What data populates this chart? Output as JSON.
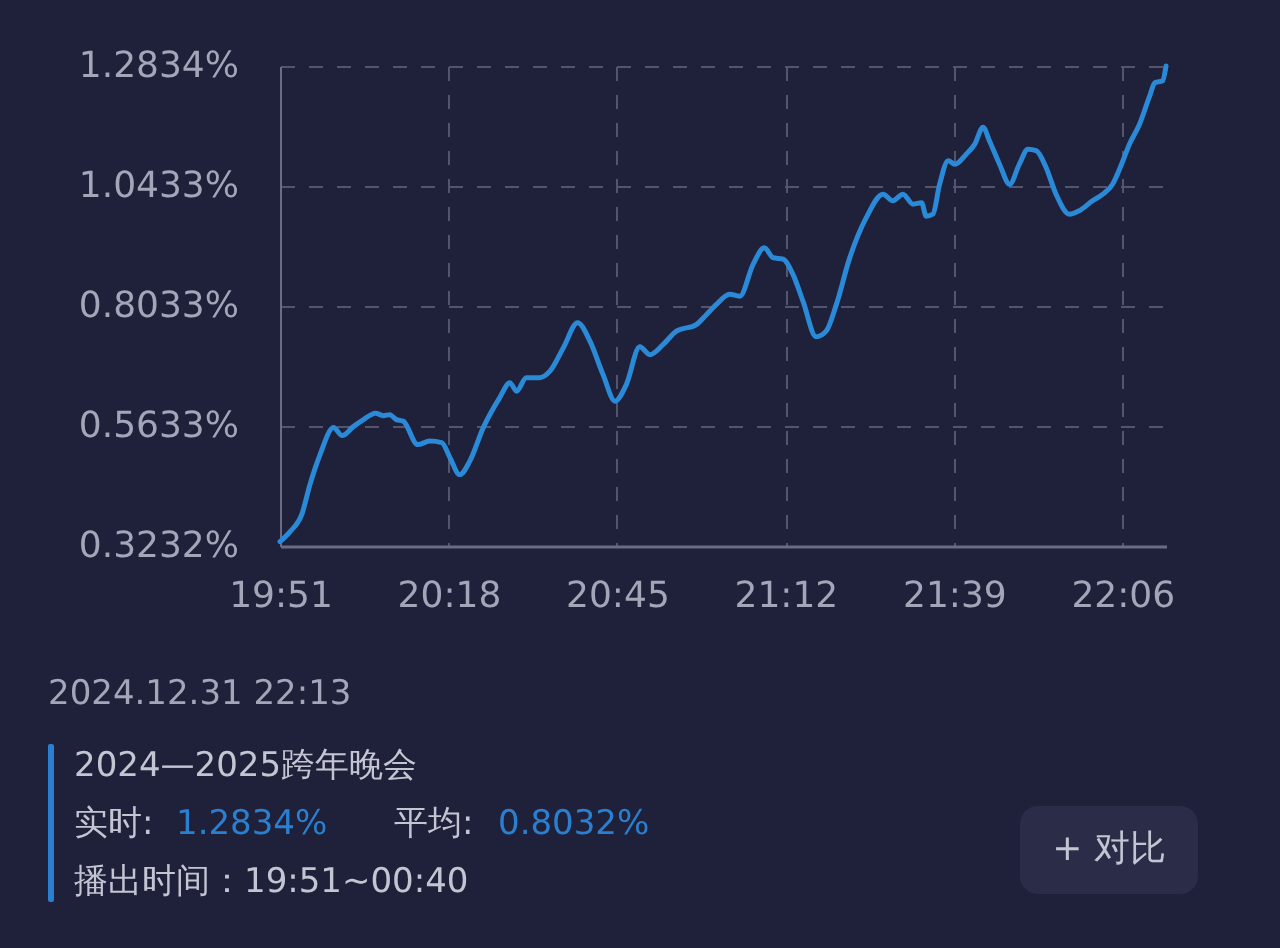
{
  "chart_data": {
    "type": "line",
    "x": [
      19.85,
      19.877,
      19.909,
      19.93,
      19.957,
      19.993,
      20.016,
      20.046,
      20.073,
      20.105,
      20.126,
      20.143,
      20.161,
      20.179,
      20.218,
      20.25,
      20.282,
      20.304,
      20.33,
      20.357,
      20.393,
      20.437,
      20.464,
      20.482,
      20.508,
      20.544,
      20.571,
      20.607,
      20.645,
      20.678,
      20.713,
      20.745,
      20.775,
      20.811,
      20.838,
      20.873,
      20.909,
      20.962,
      20.989,
      21.015,
      21.051,
      21.078,
      21.114,
      21.144,
      21.167,
      21.194,
      21.22,
      21.247,
      21.282,
      21.309,
      21.336,
      21.372,
      21.416,
      21.461,
      21.487,
      21.514,
      21.541,
      21.564,
      21.576,
      21.594,
      21.612,
      21.635,
      21.653,
      21.683,
      21.706,
      21.728,
      21.745,
      21.772,
      21.799,
      21.825,
      21.848,
      21.87,
      21.896,
      21.923,
      21.959,
      21.985,
      22.021,
      22.048,
      22.074,
      22.098,
      22.119,
      22.146,
      22.172,
      22.187,
      22.208,
      22.2167
    ],
    "series": [
      {
        "color": "#2a8ad8",
        "values": [
          0.332,
          0.352,
          0.388,
          0.446,
          0.506,
          0.56,
          0.544,
          0.562,
          0.576,
          0.589,
          0.584,
          0.586,
          0.576,
          0.573,
          0.526,
          0.533,
          0.53,
          0.5,
          0.466,
          0.493,
          0.56,
          0.62,
          0.65,
          0.633,
          0.66,
          0.66,
          0.673,
          0.72,
          0.77,
          0.733,
          0.666,
          0.613,
          0.646,
          0.722,
          0.706,
          0.726,
          0.753,
          0.766,
          0.786,
          0.806,
          0.827,
          0.823,
          0.887,
          0.92,
          0.9,
          0.897,
          0.867,
          0.813,
          0.742,
          0.753,
          0.806,
          0.9,
          0.98,
          1.027,
          1.014,
          1.027,
          1.007,
          1.01,
          0.983,
          0.987,
          1.047,
          1.094,
          1.087,
          1.107,
          1.127,
          1.161,
          1.134,
          1.087,
          1.047,
          1.087,
          1.117,
          1.114,
          1.081,
          1.027,
          0.987,
          0.994,
          1.014,
          1.027,
          1.047,
          1.087,
          1.127,
          1.167,
          1.221,
          1.25,
          1.254,
          1.2834
        ]
      }
    ],
    "xlim": [
      19.85,
      22.2167
    ],
    "xticks": [
      {
        "value": 19.85,
        "label": "19:51"
      },
      {
        "value": 20.3,
        "label": "20:18"
      },
      {
        "value": 20.75,
        "label": "20:45"
      },
      {
        "value": 21.2,
        "label": "21:12"
      },
      {
        "value": 21.65,
        "label": "21:39"
      },
      {
        "value": 22.1,
        "label": "22:06"
      }
    ],
    "ylim": [
      0.3232,
      1.2834
    ],
    "yticks": [
      {
        "value": 0.3232,
        "label": "0.3232%"
      },
      {
        "value": 0.5633,
        "label": "0.5633%"
      },
      {
        "value": 0.8033,
        "label": "0.8033%"
      },
      {
        "value": 1.0433,
        "label": "1.0433%"
      },
      {
        "value": 1.2834,
        "label": "1.2834%"
      }
    ],
    "grid": true,
    "line_style": "solid",
    "annotations": [
      "2024.12.31 22:13",
      "2024—2025跨年晚会",
      "实时:",
      "1.2834%",
      "平均:",
      "0.8032%",
      "播出时间：19:51~00:40",
      "+ 对比"
    ]
  }
}
